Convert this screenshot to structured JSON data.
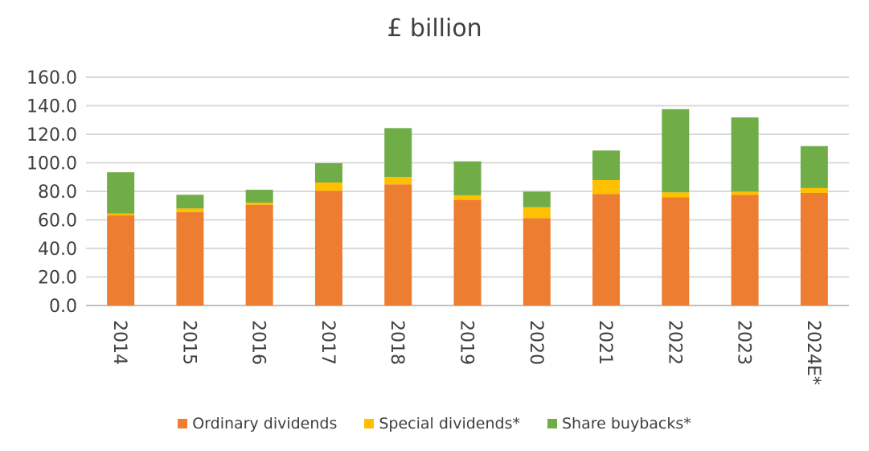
{
  "chart_data": {
    "type": "bar",
    "stacked": true,
    "title": "£ billion",
    "xlabel": "",
    "ylabel": "",
    "ylim": [
      0,
      160
    ],
    "yticks": [
      "0.0",
      "20.0",
      "40.0",
      "60.0",
      "80.0",
      "100.0",
      "120.0",
      "140.0",
      "160.0"
    ],
    "grid": true,
    "legend_position": "bottom",
    "categories": [
      "2014",
      "2015",
      "2016",
      "2017",
      "2018",
      "2019",
      "2020",
      "2021",
      "2022",
      "2023",
      "2024E*"
    ],
    "series": [
      {
        "name": "Ordinary dividends",
        "color": "#ED7D31",
        "values": [
          63.1,
          65.4,
          70.6,
          80.4,
          84.9,
          74.0,
          61.2,
          78.1,
          75.9,
          77.6,
          78.9
        ]
      },
      {
        "name": "Special dividends*",
        "color": "#FFC000",
        "values": [
          1.3,
          2.6,
          1.5,
          5.8,
          5.2,
          3.2,
          7.7,
          9.8,
          3.4,
          2.2,
          3.4
        ]
      },
      {
        "name": "Share buybacks*",
        "color": "#70AD47",
        "values": [
          29.0,
          9.6,
          9.0,
          13.5,
          34.2,
          23.8,
          10.9,
          20.7,
          58.3,
          52.0,
          29.4
        ]
      }
    ]
  }
}
